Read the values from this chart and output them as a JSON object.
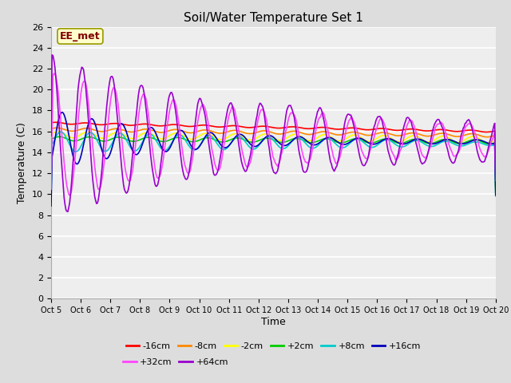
{
  "title": "Soil/Water Temperature Set 1",
  "xlabel": "Time",
  "ylabel": "Temperature (C)",
  "annotation": "EE_met",
  "ylim": [
    0,
    26
  ],
  "yticks": [
    0,
    2,
    4,
    6,
    8,
    10,
    12,
    14,
    16,
    18,
    20,
    22,
    24,
    26
  ],
  "xtick_labels": [
    "Oct 5",
    "Oct 6",
    "Oct 7",
    "Oct 8",
    "Oct 9",
    "Oct 10",
    "Oct 11",
    "Oct 12",
    "Oct 13",
    "Oct 14",
    "Oct 15",
    "Oct 16",
    "Oct 17",
    "Oct 18",
    "Oct 19",
    "Oct 20"
  ],
  "series": [
    {
      "label": "-16cm",
      "color": "#ff0000"
    },
    {
      "label": "-8cm",
      "color": "#ff8800"
    },
    {
      "label": "-2cm",
      "color": "#ffff00"
    },
    {
      "label": "+2cm",
      "color": "#00cc00"
    },
    {
      "label": "+8cm",
      "color": "#00cccc"
    },
    {
      "label": "+16cm",
      "color": "#0000bb"
    },
    {
      "label": "+32cm",
      "color": "#ff44ff"
    },
    {
      "label": "+64cm",
      "color": "#9900cc"
    }
  ],
  "background_color": "#dddddd",
  "plot_bg_color": "#eeeeee",
  "grid_color": "#ffffff",
  "n_points": 480
}
